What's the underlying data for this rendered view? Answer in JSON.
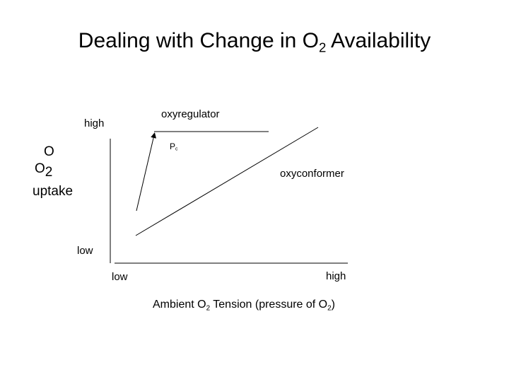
{
  "title": {
    "main": "Dealing with Change in O",
    "sub": "2",
    "rest": " Availability"
  },
  "y_axis": {
    "high_label": "high",
    "low_label": "low",
    "title_line1": "O",
    "title_line2_main": "O",
    "title_line2_sub": "2",
    "title_line3": "uptake"
  },
  "x_axis": {
    "low_label": "low",
    "high_label": "high",
    "title_part1": "Ambient O",
    "title_sub1": "2",
    "title_part2": " Tension (pressure of O",
    "title_sub2": "2",
    "title_part3": ")"
  },
  "curves": {
    "oxyregulator_label": "oxyregulator",
    "oxyconformer_label": "oxyconformer",
    "pc_main": "P",
    "pc_sub": "c"
  },
  "colors": {
    "line": "#000000",
    "background": "#ffffff"
  }
}
